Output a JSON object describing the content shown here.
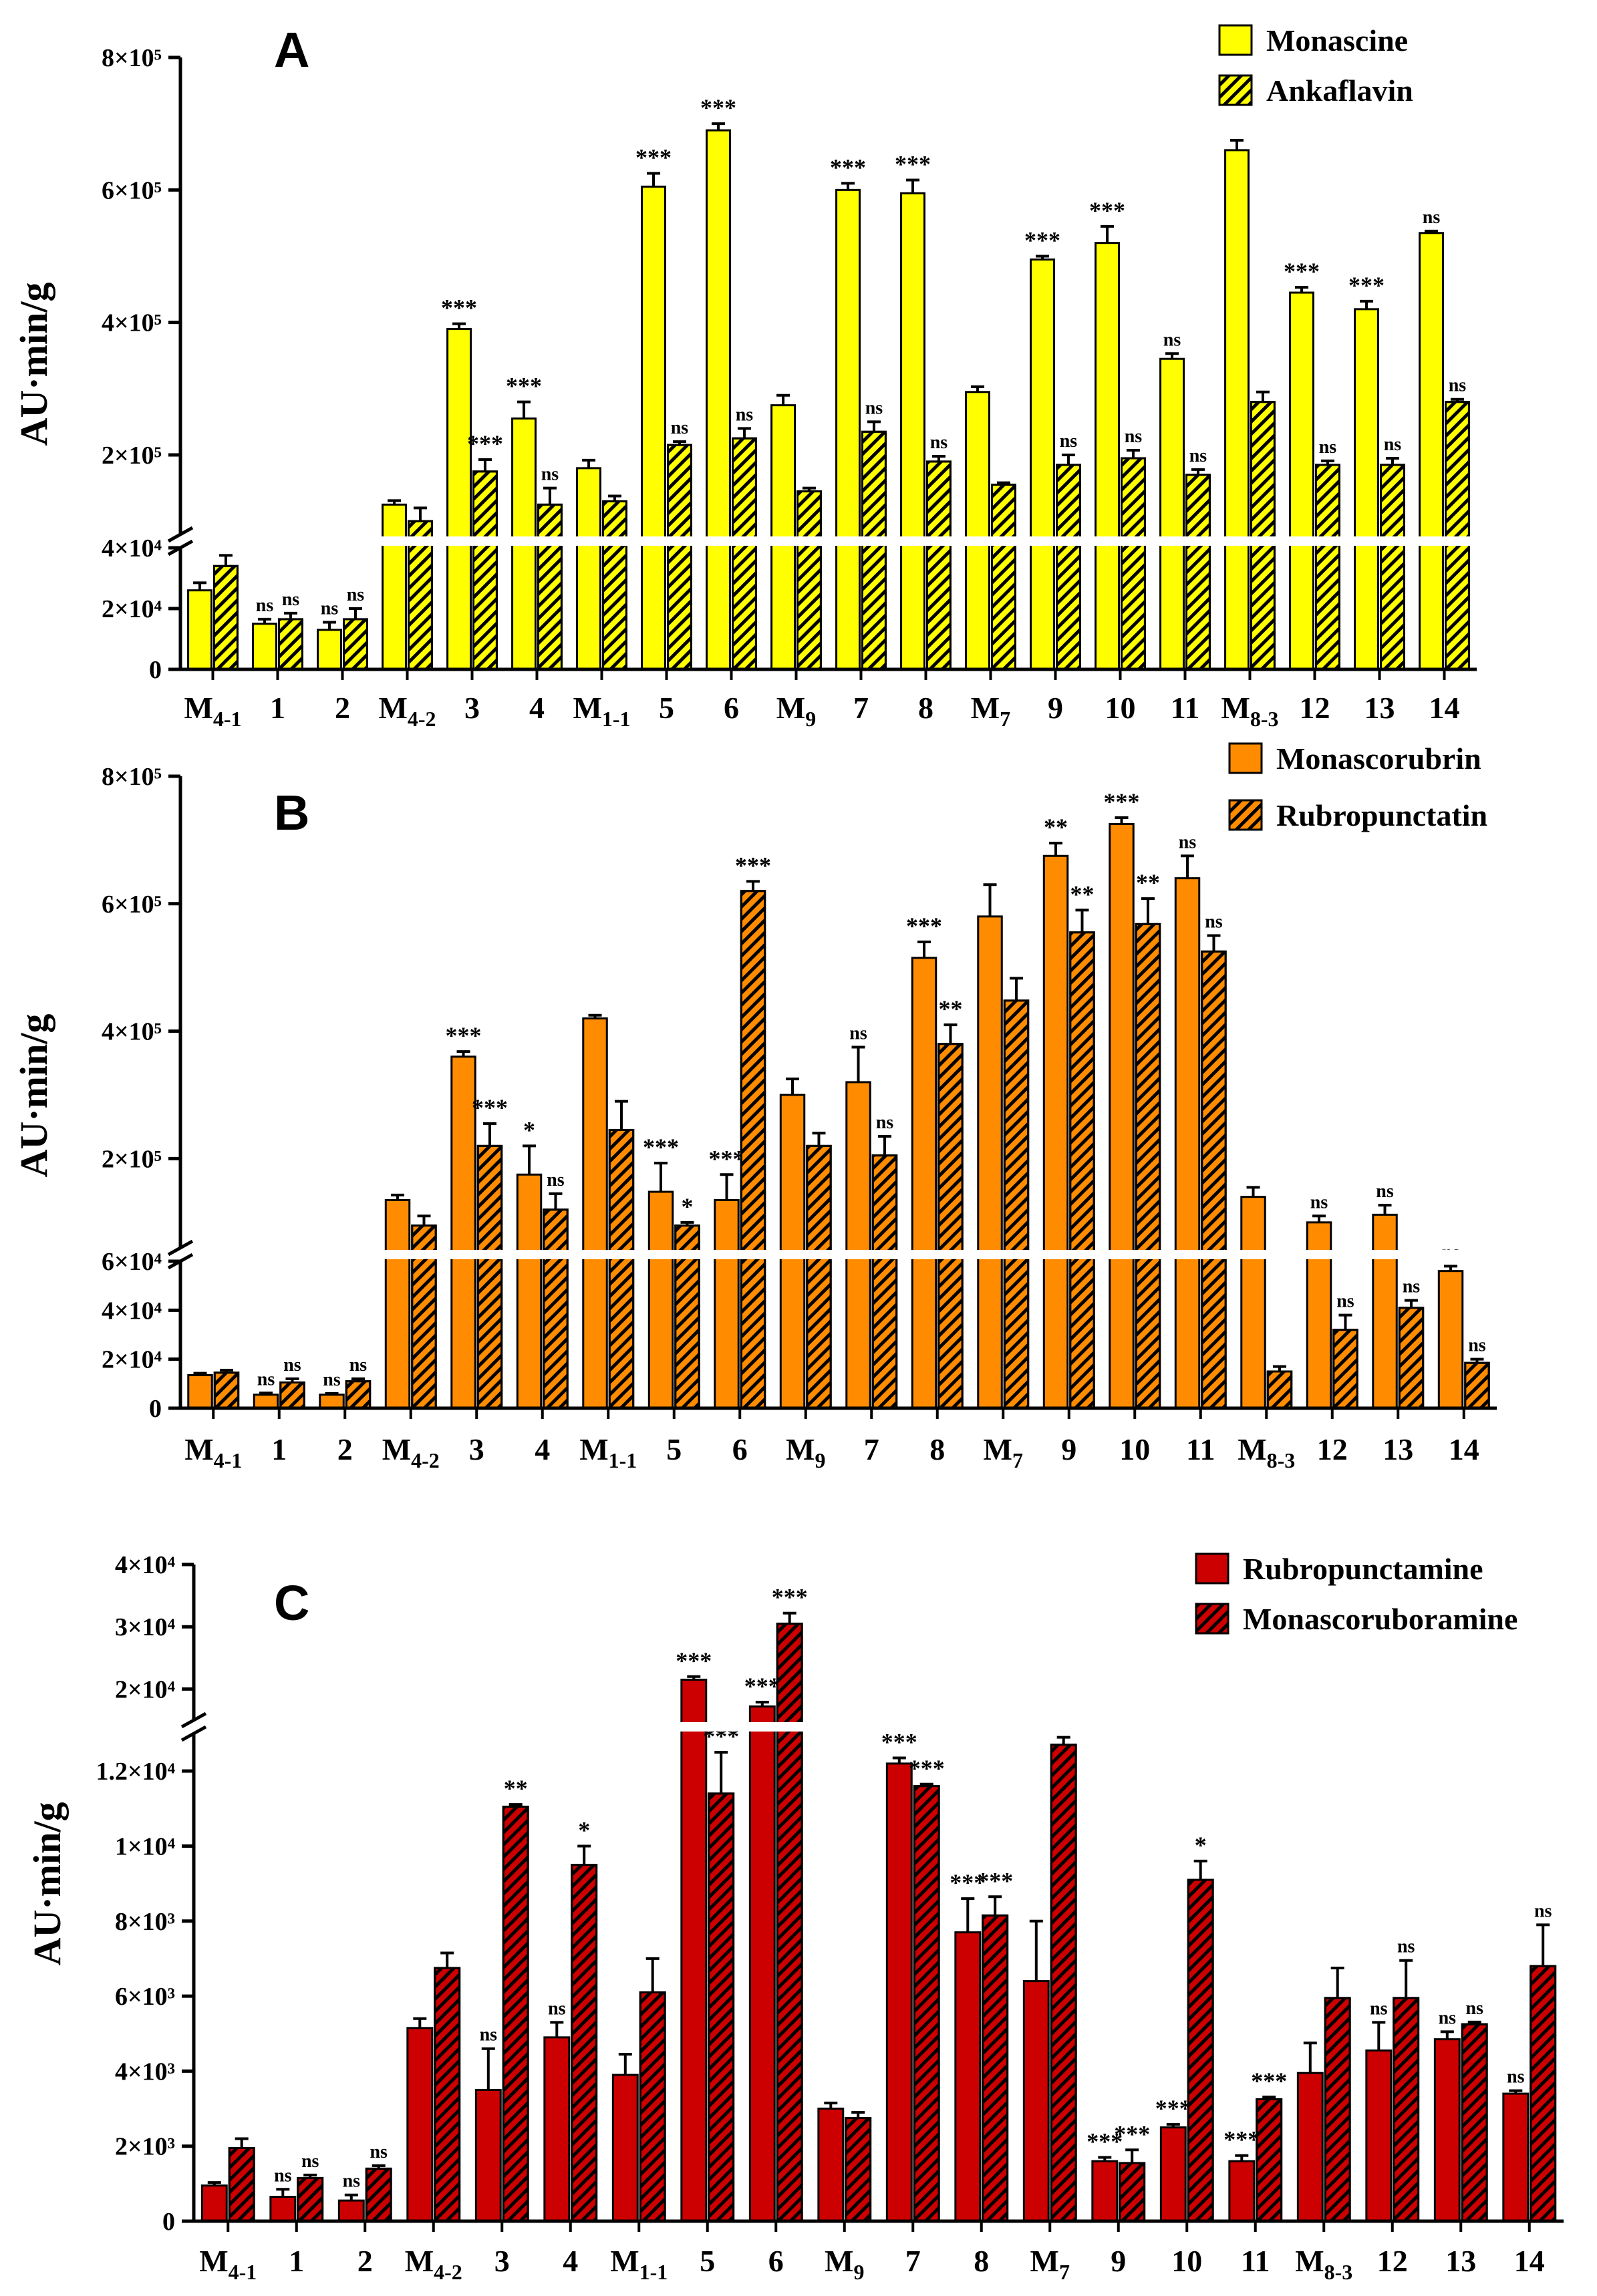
{
  "figure": {
    "categories": [
      {
        "main": "M",
        "sub": "4-1"
      },
      {
        "main": "1",
        "sub": ""
      },
      {
        "main": "2",
        "sub": ""
      },
      {
        "main": "M",
        "sub": "4-2"
      },
      {
        "main": "3",
        "sub": ""
      },
      {
        "main": "4",
        "sub": ""
      },
      {
        "main": "M",
        "sub": "1-1"
      },
      {
        "main": "5",
        "sub": ""
      },
      {
        "main": "6",
        "sub": ""
      },
      {
        "main": "M",
        "sub": "9"
      },
      {
        "main": "7",
        "sub": ""
      },
      {
        "main": "8",
        "sub": ""
      },
      {
        "main": "M",
        "sub": "7"
      },
      {
        "main": "9",
        "sub": ""
      },
      {
        "main": "10",
        "sub": ""
      },
      {
        "main": "11",
        "sub": ""
      },
      {
        "main": "M",
        "sub": "8-3"
      },
      {
        "main": "12",
        "sub": ""
      },
      {
        "main": "13",
        "sub": ""
      },
      {
        "main": "14",
        "sub": ""
      }
    ],
    "ylabel": "AU·min/g"
  },
  "chart_data": [
    {
      "type": "bar",
      "panel": "A",
      "ylabel": "AU·min/g",
      "categories": [
        "M4-1",
        "1",
        "2",
        "M4-2",
        "3",
        "4",
        "M1-1",
        "5",
        "6",
        "M9",
        "7",
        "8",
        "M7",
        "9",
        "10",
        "11",
        "M8-3",
        "12",
        "13",
        "14"
      ],
      "axis_break": {
        "lower_range": [
          0,
          40000
        ],
        "upper_range": [
          80000,
          800000
        ]
      },
      "lower_ticks": [
        {
          "value": 0,
          "label": "0"
        },
        {
          "value": 20000,
          "label": "2×10⁴"
        },
        {
          "value": 40000,
          "label": "4×10⁴"
        }
      ],
      "upper_ticks": [
        {
          "value": 200000,
          "label": "2×10⁵"
        },
        {
          "value": 400000,
          "label": "4×10⁵"
        },
        {
          "value": 600000,
          "label": "6×10⁵"
        },
        {
          "value": 800000,
          "label": "8×10⁵"
        }
      ],
      "legend_position": "top-right",
      "series": [
        {
          "name": "Monascine",
          "color": "#ffff00",
          "hatched": false,
          "values": [
            26000,
            15000,
            13000,
            125000,
            390000,
            255000,
            180000,
            605000,
            690000,
            275000,
            600000,
            595000,
            295000,
            495000,
            520000,
            345000,
            660000,
            445000,
            420000,
            535000
          ],
          "errors": [
            2500,
            1500,
            2500,
            6000,
            8000,
            25000,
            12000,
            20000,
            10000,
            15000,
            10000,
            20000,
            8000,
            5000,
            25000,
            8000,
            15000,
            8000,
            12000,
            3000
          ],
          "significance": [
            "",
            "ns",
            "ns",
            "",
            "***",
            "***",
            "",
            "***",
            "***",
            "",
            "***",
            "***",
            "",
            "***",
            "***",
            "ns",
            "",
            "***",
            "***",
            "ns"
          ]
        },
        {
          "name": "Ankaflavin",
          "color": "#ffff00",
          "hatched": true,
          "values": [
            34000,
            16500,
            16500,
            100000,
            175000,
            125000,
            130000,
            215000,
            225000,
            145000,
            235000,
            190000,
            155000,
            185000,
            195000,
            170000,
            280000,
            185000,
            185000,
            280000
          ],
          "errors": [
            3500,
            2000,
            3500,
            20000,
            18000,
            25000,
            8000,
            5000,
            15000,
            5000,
            15000,
            8000,
            3000,
            15000,
            12000,
            8000,
            15000,
            6000,
            10000,
            4000
          ],
          "significance": [
            "",
            "ns",
            "ns",
            "",
            "***",
            "ns",
            "",
            "ns",
            "ns",
            "",
            "ns",
            "ns",
            "",
            "ns",
            "ns",
            "ns",
            "",
            "ns",
            "ns",
            "ns"
          ]
        }
      ]
    },
    {
      "type": "bar",
      "panel": "B",
      "ylabel": "AU·min/g",
      "categories": [
        "M4-1",
        "1",
        "2",
        "M4-2",
        "3",
        "4",
        "M1-1",
        "5",
        "6",
        "M9",
        "7",
        "8",
        "M7",
        "9",
        "10",
        "11",
        "M8-3",
        "12",
        "13",
        "14"
      ],
      "axis_break": {
        "lower_range": [
          0,
          60000
        ],
        "upper_range": [
          60000,
          800000
        ]
      },
      "lower_ticks": [
        {
          "value": 0,
          "label": "0"
        },
        {
          "value": 20000,
          "label": "2×10⁴"
        },
        {
          "value": 40000,
          "label": "4×10⁴"
        },
        {
          "value": 60000,
          "label": "6×10⁴"
        }
      ],
      "upper_ticks": [
        {
          "value": 200000,
          "label": "2×10⁵"
        },
        {
          "value": 400000,
          "label": "4×10⁵"
        },
        {
          "value": 600000,
          "label": "6×10⁵"
        },
        {
          "value": 800000,
          "label": "8×10⁵"
        }
      ],
      "legend_position": "top-right",
      "series": [
        {
          "name": "Monascorubrin",
          "color": "#ff8c00",
          "hatched": false,
          "values": [
            13500,
            5500,
            5500,
            135000,
            360000,
            175000,
            420000,
            148000,
            135000,
            300000,
            320000,
            515000,
            580000,
            675000,
            725000,
            640000,
            140000,
            100000,
            112000,
            56000
          ],
          "errors": [
            800,
            700,
            500,
            8000,
            8000,
            45000,
            5000,
            45000,
            40000,
            25000,
            55000,
            25000,
            50000,
            20000,
            10000,
            35000,
            15000,
            10000,
            15000,
            2000
          ],
          "significance": [
            "",
            "ns",
            "ns",
            "",
            "***",
            "*",
            "",
            "***",
            "***",
            "",
            "ns",
            "***",
            "",
            "**",
            "***",
            "ns",
            "",
            "ns",
            "ns",
            "ns"
          ]
        },
        {
          "name": "Rubropunctatin",
          "color": "#ff8c00",
          "hatched": true,
          "values": [
            14500,
            10500,
            11000,
            95000,
            220000,
            120000,
            245000,
            95000,
            620000,
            220000,
            205000,
            380000,
            448000,
            555000,
            568000,
            525000,
            15000,
            32000,
            41000,
            18500
          ],
          "errors": [
            1000,
            1500,
            1000,
            15000,
            35000,
            25000,
            45000,
            5000,
            15000,
            20000,
            30000,
            30000,
            35000,
            35000,
            40000,
            25000,
            2000,
            6000,
            3000,
            1500
          ],
          "significance": [
            "",
            "ns",
            "ns",
            "",
            "***",
            "ns",
            "",
            "*",
            "***",
            "",
            "ns",
            "**",
            "",
            "**",
            "**",
            "ns",
            "",
            "ns",
            "ns",
            "ns"
          ]
        }
      ]
    },
    {
      "type": "bar",
      "panel": "C",
      "ylabel": "AU·min/g",
      "categories": [
        "M4-1",
        "1",
        "2",
        "M4-2",
        "3",
        "4",
        "M1-1",
        "5",
        "6",
        "M9",
        "7",
        "8",
        "M7",
        "9",
        "10",
        "11",
        "M8-3",
        "12",
        "13",
        "14"
      ],
      "axis_break": {
        "lower_range": [
          0,
          13000
        ],
        "upper_range": [
          15000,
          40000
        ]
      },
      "lower_ticks": [
        {
          "value": 0,
          "label": "0"
        },
        {
          "value": 2000,
          "label": "2×10³"
        },
        {
          "value": 4000,
          "label": "4×10³"
        },
        {
          "value": 6000,
          "label": "6×10³"
        },
        {
          "value": 8000,
          "label": "8×10³"
        },
        {
          "value": 10000,
          "label": "1×10⁴"
        },
        {
          "value": 12000,
          "label": "1.2×10⁴"
        }
      ],
      "upper_ticks": [
        {
          "value": 20000,
          "label": "2×10⁴"
        },
        {
          "value": 30000,
          "label": "3×10⁴"
        },
        {
          "value": 40000,
          "label": "4×10⁴"
        }
      ],
      "legend_position": "top-right",
      "series": [
        {
          "name": "Rubropunctamine",
          "color": "#cc0000",
          "hatched": false,
          "values": [
            950,
            650,
            550,
            5150,
            3500,
            4900,
            3900,
            21500,
            17200,
            3000,
            12200,
            7700,
            6400,
            1600,
            2500,
            1600,
            3950,
            4550,
            4850,
            3400
          ],
          "errors": [
            80,
            200,
            150,
            250,
            1100,
            400,
            550,
            500,
            700,
            150,
            150,
            900,
            1600,
            100,
            80,
            150,
            800,
            750,
            200,
            80
          ],
          "significance": [
            "",
            "ns",
            "ns",
            "",
            "ns",
            "ns",
            "",
            "***",
            "***",
            "",
            "***",
            "***",
            "",
            "***",
            "***",
            "***",
            "",
            "ns",
            "ns",
            "ns"
          ]
        },
        {
          "name": "Monascoruboramine",
          "color": "#cc0000",
          "hatched": true,
          "values": [
            1950,
            1150,
            1400,
            6750,
            11050,
            9500,
            6100,
            11400,
            30500,
            2750,
            11600,
            8150,
            12700,
            1550,
            9100,
            3250,
            5950,
            5950,
            5250,
            6800
          ],
          "errors": [
            250,
            80,
            80,
            400,
            60,
            500,
            900,
            1100,
            1700,
            150,
            50,
            500,
            200,
            350,
            500,
            60,
            800,
            1000,
            60,
            1100
          ],
          "significance": [
            "",
            "ns",
            "ns",
            "",
            "**",
            "*",
            "",
            "***",
            "***",
            "",
            "***",
            "***",
            "",
            "***",
            "*",
            "***",
            "",
            "ns",
            "ns",
            "ns"
          ]
        }
      ]
    }
  ]
}
